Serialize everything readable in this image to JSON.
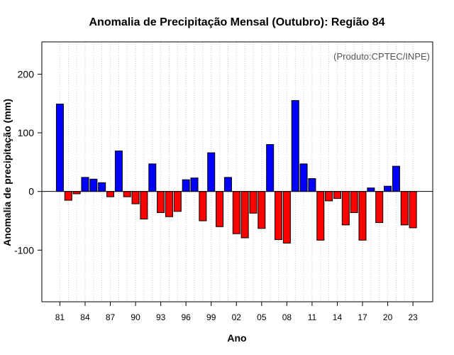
{
  "chart_data": {
    "type": "bar",
    "title": "Anomalia de Precipitação Mensal (Outubro): Região 84",
    "annotation": "(Produto:CPTEC/INPE)",
    "xlabel": "Ano",
    "ylabel": "Anomalia de precipitação (mm)",
    "ylim": [
      -188,
      255
    ],
    "yticks": [
      -100,
      0,
      100,
      200
    ],
    "ytick_labels": [
      "-100",
      "0",
      "100",
      "200"
    ],
    "xtick_labels": [
      "81",
      "84",
      "87",
      "90",
      "93",
      "96",
      "99",
      "02",
      "05",
      "08",
      "11",
      "14",
      "17",
      "20",
      "23"
    ],
    "xtick_every": 3,
    "grid": true,
    "colors": {
      "positive": "#0000ff",
      "negative": "#ff0000",
      "zero_line": "#000000",
      "grid": "#c8c8c8"
    },
    "categories": [
      "1981",
      "1982",
      "1983",
      "1984",
      "1985",
      "1986",
      "1987",
      "1988",
      "1989",
      "1990",
      "1991",
      "1992",
      "1993",
      "1994",
      "1995",
      "1996",
      "1997",
      "1998",
      "1999",
      "2000",
      "2001",
      "2002",
      "2003",
      "2004",
      "2005",
      "2006",
      "2007",
      "2008",
      "2009",
      "2010",
      "2011",
      "2012",
      "2013",
      "2014",
      "2015",
      "2016",
      "2017",
      "2018",
      "2019",
      "2020",
      "2021",
      "2022",
      "2023"
    ],
    "values": [
      149,
      -15,
      -4,
      24,
      21,
      15,
      -9,
      69,
      -9,
      -21,
      -47,
      47,
      -36,
      -43,
      -34,
      20,
      23,
      -50,
      66,
      -60,
      24,
      -72,
      -79,
      -37,
      -63,
      80,
      -82,
      -88,
      155,
      47,
      22,
      -83,
      -16,
      -12,
      -57,
      -36,
      -83,
      6,
      -53,
      9,
      43,
      -57,
      -62
    ]
  }
}
